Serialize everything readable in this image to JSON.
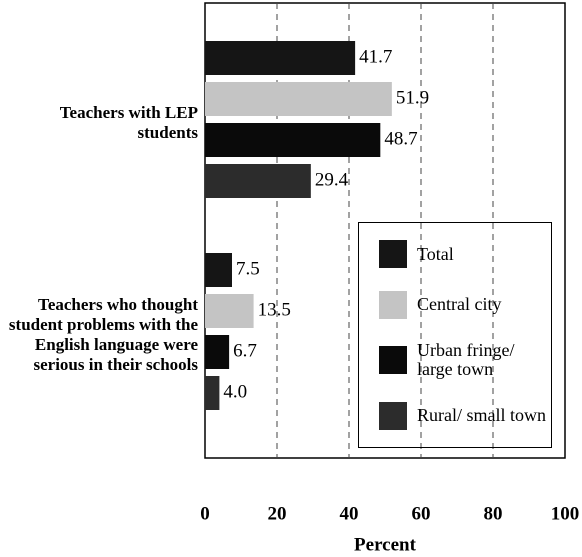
{
  "chart_data": {
    "type": "hbar",
    "xlabel": "Percent",
    "categories": [
      "Teachers with LEP students",
      "Teachers who thought student problems with the English language were serious in their schools"
    ],
    "series": [
      {
        "name": "Total",
        "color": "#151515",
        "values": [
          41.7,
          7.5
        ],
        "value_labels": [
          "41.7",
          "7.5"
        ]
      },
      {
        "name": "Central city",
        "color": "#c4c4c4",
        "values": [
          51.9,
          13.5
        ],
        "value_labels": [
          "51.9",
          "13.5"
        ]
      },
      {
        "name": "Urban fringe/ large town",
        "color": "#0a0a0a",
        "values": [
          48.7,
          6.7
        ],
        "value_labels": [
          "48.7",
          "6.7"
        ]
      },
      {
        "name": "Rural/ small town",
        "color": "#2c2c2c",
        "values": [
          29.4,
          4.0
        ],
        "value_labels": [
          "29.4",
          "4.0"
        ]
      }
    ],
    "xlim": [
      0,
      100
    ],
    "xticks": [
      0,
      20,
      40,
      60,
      80,
      100
    ],
    "grid": true
  }
}
